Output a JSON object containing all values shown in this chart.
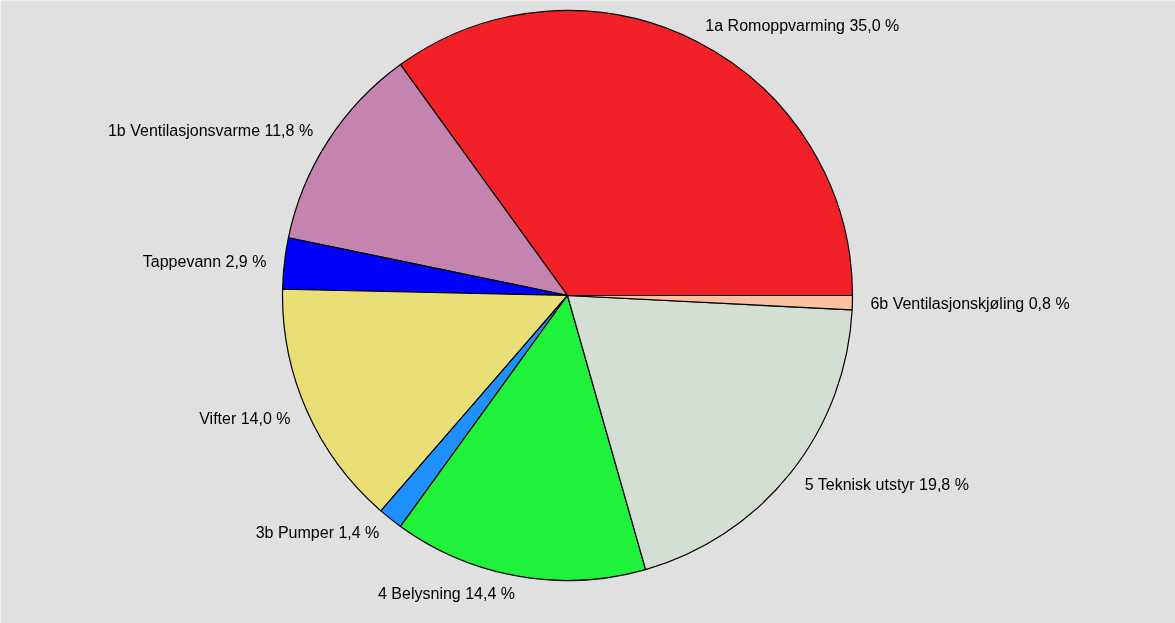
{
  "chart_data": {
    "type": "pie",
    "categories": [
      "1a Romoppvarming",
      "1b Ventilasjonsvarme",
      "Tappevann",
      "Vifter",
      "3b Pumper",
      "4 Belysning",
      "5 Teknisk utstyr",
      "6b Ventilasjonskjøling"
    ],
    "values": [
      35.0,
      11.8,
      2.9,
      14.0,
      1.4,
      14.4,
      19.8,
      0.8
    ],
    "value_labels": [
      "35,0 %",
      "11,8 %",
      "2,9 %",
      "14,0 %",
      "1,4 %",
      "14,4 %",
      "19,8 %",
      "0,8 %"
    ],
    "colors": [
      "#f22027",
      "#c584b0",
      "#0000ff",
      "#eadf76",
      "#1e90ff",
      "#20f23c",
      "#d3dfd3",
      "#f9c1a0"
    ]
  }
}
